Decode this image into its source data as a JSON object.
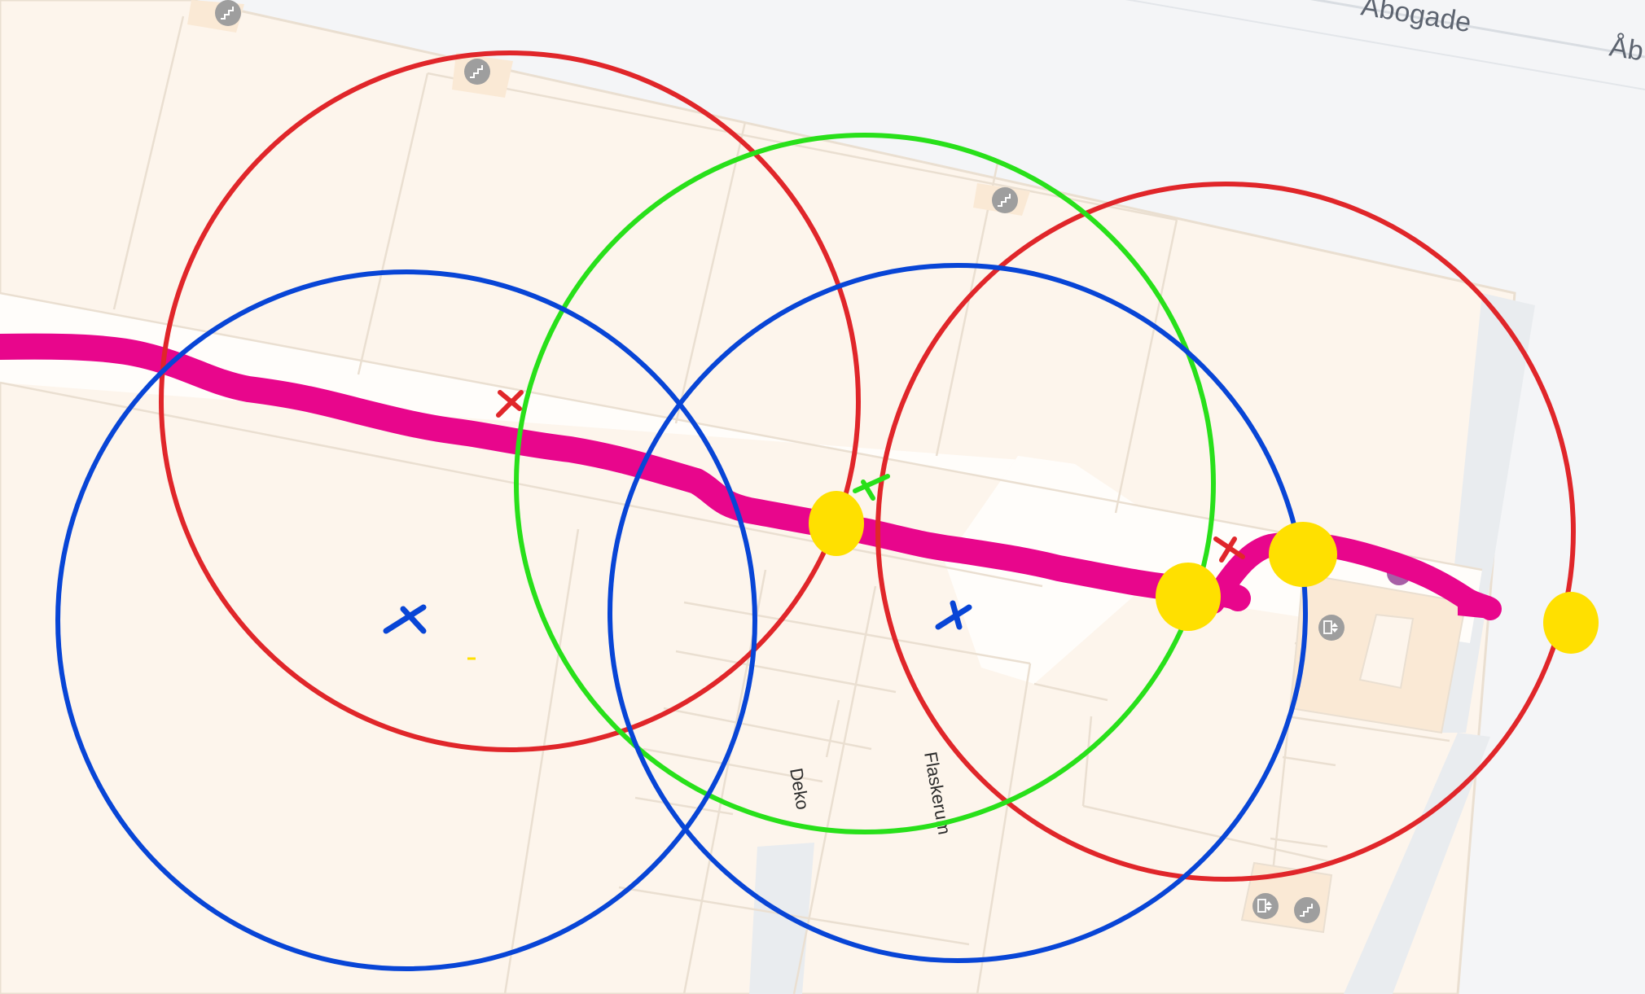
{
  "map": {
    "street_labels": [
      "Åbogade",
      "Åb"
    ],
    "room_labels": [
      "Deko",
      "Flaskerum"
    ],
    "colors": {
      "street_bg": "#f4f5f7",
      "building_fill": "#fdf5ec",
      "building_wall": "#eadfd1",
      "corridor": "#fffdfa",
      "plaza_shadow": "#e9ecef",
      "stairs_badge": "#9e9e9e"
    },
    "icons": {
      "stairs": "stairs-icon",
      "elevator": "elevator-icon"
    }
  },
  "annotations": {
    "colors": {
      "red": "#e0262a",
      "green": "#28e01a",
      "blue": "#0845d6",
      "path": "#e8068c",
      "marker": "#ffe000"
    }
  }
}
